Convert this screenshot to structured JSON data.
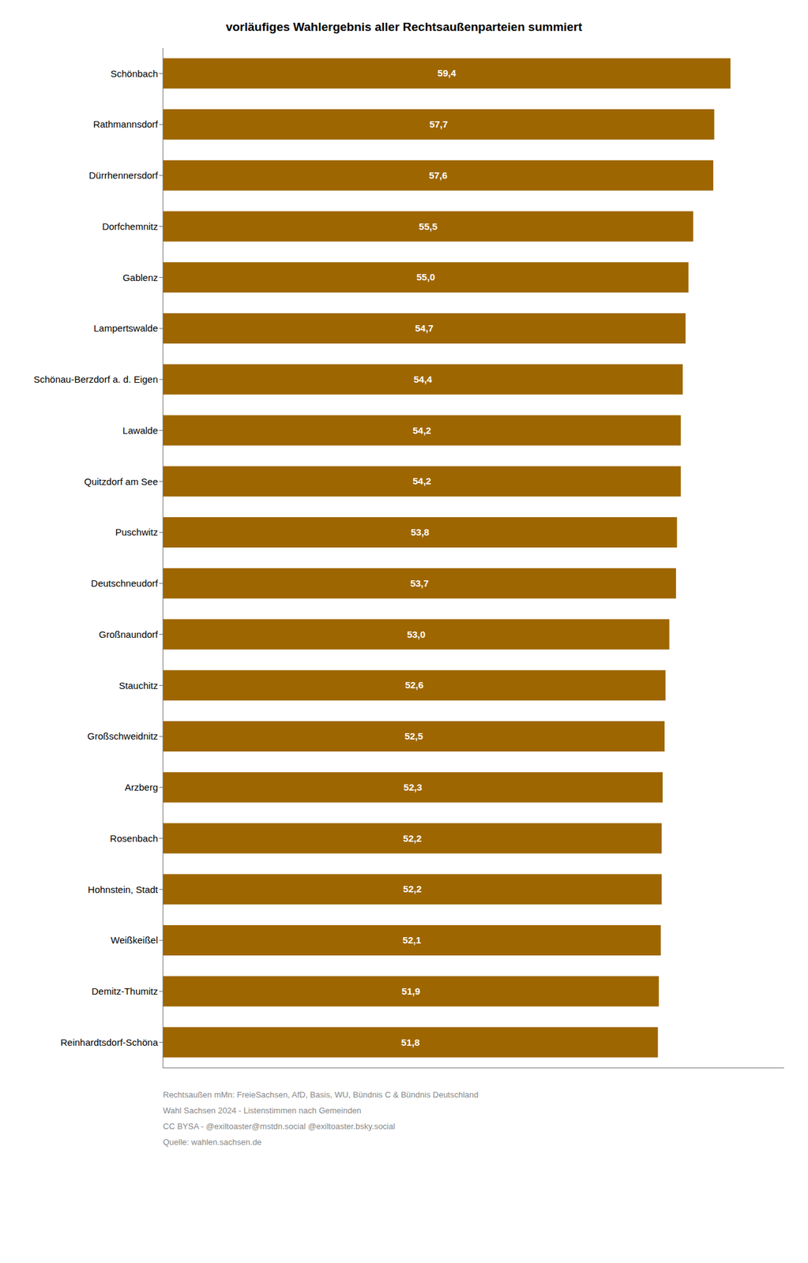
{
  "chart_data": {
    "type": "bar",
    "orientation": "horizontal",
    "title": "vorläufiges Wahlergebnis aller Rechtsaußenparteien summiert",
    "categories": [
      "Schönbach",
      "Rathmannsdorf",
      "Dürrhennersdorf",
      "Dorfchemnitz",
      "Gablenz",
      "Lampertswalde",
      "Schönau-Berzdorf a. d. Eigen",
      "Lawalde",
      "Quitzdorf am See",
      "Puschwitz",
      "Deutschneudorf",
      "Großnaundorf",
      "Stauchitz",
      "Großschweidnitz",
      "Arzberg",
      "Rosenbach",
      "Hohnstein, Stadt",
      "Weißkeißel",
      "Demitz-Thumitz",
      "Reinhardtsdorf-Schöna"
    ],
    "values": [
      59.4,
      57.7,
      57.6,
      55.5,
      55.0,
      54.7,
      54.4,
      54.2,
      54.2,
      53.8,
      53.7,
      53.0,
      52.6,
      52.5,
      52.3,
      52.2,
      52.2,
      52.1,
      51.9,
      51.8
    ],
    "value_labels": [
      "59,4",
      "57,7",
      "57,6",
      "55,5",
      "55,0",
      "54,7",
      "54,4",
      "54,2",
      "54,2",
      "53,8",
      "53,7",
      "53,0",
      "52,6",
      "52,5",
      "52,3",
      "52,2",
      "52,2",
      "52,1",
      "51,9",
      "51,8"
    ],
    "data_labels": true,
    "tick_labels": "y",
    "xlim": [
      0,
      65
    ],
    "color": "#9e6600",
    "grid": false,
    "annotations": [
      "Rechtsaußen mMn: FreieSachsen, AfD, Basis, WU, Bündnis C & Bündnis Deutschland",
      "Wahl Sachsen 2024 - Listenstimmen nach Gemeinden",
      "CC BYSA - @exiltoaster@mstdn.social @exiltoaster.bsky.social",
      "Quelle: wahlen.sachsen.de"
    ]
  }
}
